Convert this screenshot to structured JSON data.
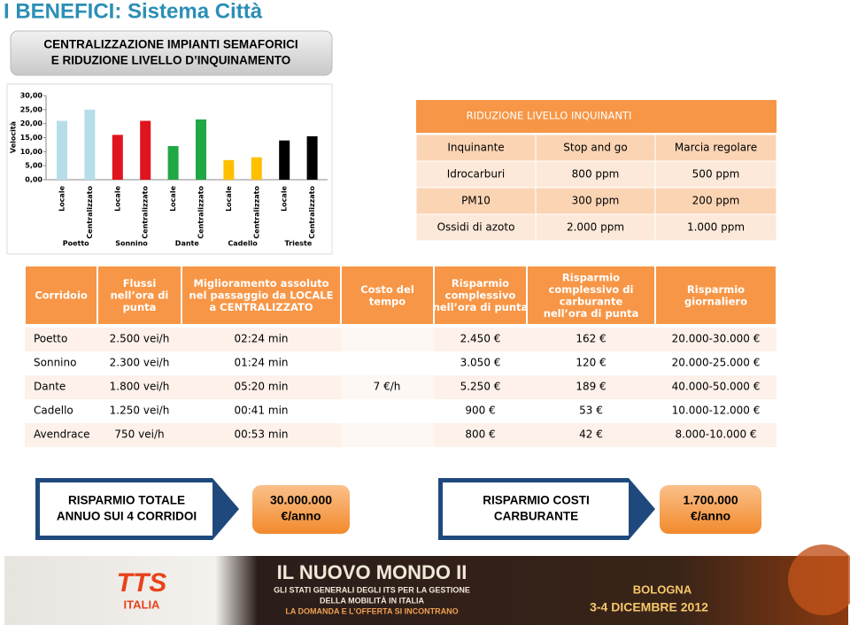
{
  "header": {
    "title": "I BENEFICI: Sistema Città",
    "subtitle": [
      "CENTRALIZZAZIONE IMPIANTI SEMAFORICI",
      "E RIDUZIONE LIVELLO D’INQUINAMENTO"
    ]
  },
  "chart_data": {
    "type": "bar",
    "y_label": "Velocità",
    "categories": [
      "Locale",
      "Centralizzato",
      "Locale",
      "Centralizzato",
      "Locale",
      "Centralizzato",
      "Locale",
      "Centralizzato",
      "Locale",
      "Centralizzato"
    ],
    "groups": [
      "Poetto",
      "Sonnino",
      "Dante",
      "Cadello",
      "Trieste"
    ],
    "values": [
      21,
      25,
      16,
      21,
      12,
      21.5,
      7,
      8,
      14,
      15.5
    ],
    "colors": [
      "#b7dee8",
      "#b7dee8",
      "#e0141e",
      "#e0141e",
      "#1fa843",
      "#1fa843",
      "#ffc000",
      "#ffc000",
      "#000000",
      "#000000"
    ],
    "ylim": [
      0,
      30
    ],
    "yticks": [
      {
        "value": 0,
        "label": "0,00"
      },
      {
        "value": 5,
        "label": "5,00"
      },
      {
        "value": 10,
        "label": "10,00"
      },
      {
        "value": 15,
        "label": "15,00"
      },
      {
        "value": 20,
        "label": "20,00"
      },
      {
        "value": 25,
        "label": "25,00"
      },
      {
        "value": 30,
        "label": "30,00"
      }
    ],
    "grid": false
  },
  "pollution_table": {
    "title": "RIDUZIONE LIVELLO INQUINANTI",
    "columns": [
      "Inquinante",
      "Stop and go",
      "Marcia regolare"
    ],
    "rows": [
      [
        "Idrocarburi",
        "800 ppm",
        "500 ppm"
      ],
      [
        "PM10",
        "300 ppm",
        "200 ppm"
      ],
      [
        "Ossidi di azoto",
        "2.000 ppm",
        "1.000 ppm"
      ]
    ]
  },
  "corridor_table": {
    "columns": [
      [
        "Corridoio"
      ],
      [
        "Flussi",
        "nell’ora di",
        "punta"
      ],
      [
        "Miglioramento assoluto",
        "nel passaggio da LOCALE",
        "a CENTRALIZZATO"
      ],
      [
        "Costo del",
        "tempo"
      ],
      [
        "Risparmio",
        "complessivo",
        "nell’ora di punta"
      ],
      [
        "Risparmio",
        "complessivo di",
        "carburante",
        "nell’ora di punta"
      ],
      [
        "Risparmio",
        "giornaliero"
      ]
    ],
    "rows": [
      [
        "Poetto",
        "2.500 vei/h",
        "02:24 min",
        "2.450 €",
        "162 €",
        "20.000-30.000 €"
      ],
      [
        "Sonnino",
        "2.300 vei/h",
        "01:24 min",
        "3.050 €",
        "120 €",
        "20.000-25.000 €"
      ],
      [
        "Dante",
        "1.800 vei/h",
        "05:20 min",
        "5.250 €",
        "189 €",
        "40.000-50.000 €"
      ],
      [
        "Cadello",
        "1.250 vei/h",
        "00:41 min",
        "900 €",
        "53 €",
        "10.000-12.000 €"
      ],
      [
        "Avendrace",
        "750 vei/h",
        "00:53 min",
        "800 €",
        "42 €",
        "8.000-10.000 €"
      ]
    ],
    "time_cost": "7 €/h"
  },
  "summary": [
    {
      "label": [
        "RISPARMIO TOTALE",
        "ANNUO SUI 4 CORRIDOI"
      ],
      "value": [
        "30.000.000",
        "€/anno"
      ]
    },
    {
      "label": [
        "RISPARMIO COSTI",
        "CARBURANTE"
      ],
      "value": [
        "1.700.000",
        "€/anno"
      ]
    }
  ],
  "banner": {
    "title": "IL NUOVO MONDO II",
    "lines": [
      "GLI STATI GENERALI DEGLI ITS PER LA GESTIONE",
      "DELLA MOBILITÀ IN ITALIA",
      "LA DOMANDA E L’OFFERTA SI INCONTRANO"
    ],
    "logo": [
      "TTS",
      "ITALIA"
    ],
    "city": "BOLOGNA",
    "date": "3-4 DICEMBRE 2012"
  }
}
